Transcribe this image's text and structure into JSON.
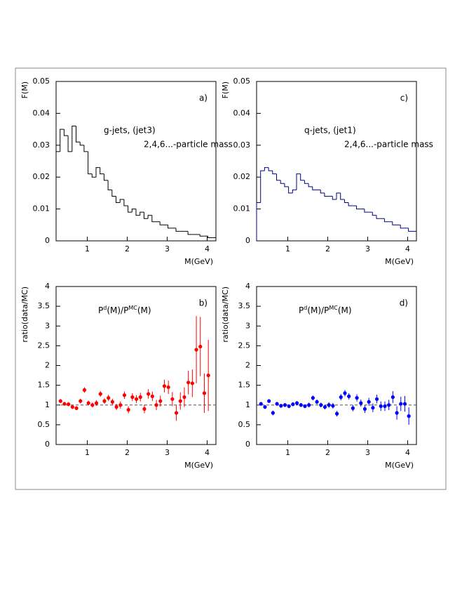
{
  "chart_data": [
    {
      "type": "histogram",
      "panel_label": "a)",
      "annotations": [
        "g-jets, (jet3)",
        "2,4,6...-particle mass"
      ],
      "xlabel": "M(GeV)",
      "ylabel": "F(M)",
      "color": "#000000",
      "xlim": [
        0.22,
        4.22
      ],
      "xticks": [
        1,
        2,
        3,
        4
      ],
      "ylim": [
        0,
        0.05
      ],
      "yticks": [
        0,
        0.01,
        0.02,
        0.03,
        0.04,
        0.05
      ],
      "bins": [
        0.22,
        0.32,
        0.42,
        0.52,
        0.62,
        0.72,
        0.82,
        0.92,
        1.02,
        1.12,
        1.22,
        1.32,
        1.42,
        1.52,
        1.62,
        1.72,
        1.82,
        1.92,
        2.02,
        2.12,
        2.22,
        2.32,
        2.42,
        2.52,
        2.62,
        2.72,
        2.82,
        2.92,
        3.02,
        3.12,
        3.22,
        3.32,
        3.42,
        3.52,
        3.62,
        3.72,
        3.82,
        3.92,
        4.02,
        4.12,
        4.22
      ],
      "values": [
        0.028,
        0.035,
        0.033,
        0.028,
        0.036,
        0.031,
        0.03,
        0.028,
        0.021,
        0.02,
        0.023,
        0.021,
        0.019,
        0.016,
        0.014,
        0.012,
        0.013,
        0.011,
        0.009,
        0.01,
        0.008,
        0.009,
        0.007,
        0.008,
        0.006,
        0.006,
        0.005,
        0.005,
        0.004,
        0.004,
        0.003,
        0.003,
        0.003,
        0.002,
        0.002,
        0.002,
        0.0015,
        0.0015,
        0.001,
        0.001
      ]
    },
    {
      "type": "errorbar",
      "panel_label": "b)",
      "formula": [
        "P",
        "d",
        "(M)/P",
        "MC",
        "(M)"
      ],
      "xlabel": "M(GeV)",
      "ylabel": "ratio(data/MC)",
      "color": "#ff0000",
      "reference_line": 1,
      "xlim": [
        0.22,
        4.22
      ],
      "xticks": [
        1,
        2,
        3,
        4
      ],
      "ylim": [
        0,
        4
      ],
      "yticks": [
        0,
        0.5,
        1,
        1.5,
        2,
        2.5,
        3,
        3.5,
        4
      ],
      "x": [
        0.33,
        0.43,
        0.53,
        0.63,
        0.73,
        0.83,
        0.93,
        1.03,
        1.13,
        1.23,
        1.33,
        1.43,
        1.53,
        1.63,
        1.73,
        1.83,
        1.93,
        2.03,
        2.13,
        2.23,
        2.33,
        2.43,
        2.53,
        2.63,
        2.73,
        2.83,
        2.93,
        3.03,
        3.13,
        3.23,
        3.33,
        3.43,
        3.53,
        3.63,
        3.73,
        3.83,
        3.93,
        4.03
      ],
      "values": [
        1.1,
        1.03,
        1.02,
        0.95,
        0.92,
        1.1,
        1.38,
        1.05,
        1.0,
        1.05,
        1.28,
        1.1,
        1.18,
        1.08,
        0.95,
        1.0,
        1.25,
        0.88,
        1.2,
        1.15,
        1.2,
        0.9,
        1.28,
        1.22,
        1.0,
        1.1,
        1.48,
        1.45,
        1.15,
        0.8,
        1.1,
        1.2,
        1.57,
        1.55,
        2.4,
        2.48,
        1.3,
        1.75
      ],
      "errors": [
        0.05,
        0.05,
        0.05,
        0.05,
        0.05,
        0.06,
        0.07,
        0.06,
        0.06,
        0.07,
        0.07,
        0.07,
        0.08,
        0.08,
        0.08,
        0.09,
        0.09,
        0.09,
        0.1,
        0.1,
        0.11,
        0.11,
        0.12,
        0.12,
        0.13,
        0.14,
        0.16,
        0.17,
        0.18,
        0.2,
        0.22,
        0.25,
        0.3,
        0.35,
        0.85,
        0.75,
        0.5,
        0.9
      ]
    },
    {
      "type": "histogram",
      "panel_label": "c)",
      "annotations": [
        "q-jets, (jet1)",
        "2,4,6...-particle mass"
      ],
      "xlabel": "M(GeV)",
      "ylabel": "F(M)",
      "color": "#000080",
      "xlim": [
        0.22,
        4.22
      ],
      "xticks": [
        1,
        2,
        3,
        4
      ],
      "ylim": [
        0,
        0.05
      ],
      "yticks": [
        0,
        0.01,
        0.02,
        0.03,
        0.04,
        0.05
      ],
      "bins": [
        0.22,
        0.32,
        0.42,
        0.52,
        0.62,
        0.72,
        0.82,
        0.92,
        1.02,
        1.12,
        1.22,
        1.32,
        1.42,
        1.52,
        1.62,
        1.72,
        1.82,
        1.92,
        2.02,
        2.12,
        2.22,
        2.32,
        2.42,
        2.52,
        2.62,
        2.72,
        2.82,
        2.92,
        3.02,
        3.12,
        3.22,
        3.32,
        3.42,
        3.52,
        3.62,
        3.72,
        3.82,
        3.92,
        4.02,
        4.12,
        4.22
      ],
      "values": [
        0.012,
        0.022,
        0.023,
        0.022,
        0.021,
        0.019,
        0.018,
        0.017,
        0.015,
        0.016,
        0.021,
        0.019,
        0.018,
        0.017,
        0.016,
        0.016,
        0.015,
        0.014,
        0.014,
        0.013,
        0.015,
        0.013,
        0.012,
        0.011,
        0.011,
        0.01,
        0.01,
        0.009,
        0.009,
        0.008,
        0.007,
        0.007,
        0.006,
        0.006,
        0.005,
        0.005,
        0.004,
        0.004,
        0.003,
        0.003
      ]
    },
    {
      "type": "errorbar",
      "panel_label": "d)",
      "formula": [
        "P",
        "d",
        "(M)/P",
        "MC",
        "(M)"
      ],
      "xlabel": "M(GeV)",
      "ylabel": "ratio(data/MC)",
      "color": "#0000ff",
      "reference_line": 1,
      "xlim": [
        0.22,
        4.22
      ],
      "xticks": [
        1,
        2,
        3,
        4
      ],
      "ylim": [
        0,
        4
      ],
      "yticks": [
        0,
        0.5,
        1,
        1.5,
        2,
        2.5,
        3,
        3.5,
        4
      ],
      "x": [
        0.33,
        0.43,
        0.53,
        0.63,
        0.73,
        0.83,
        0.93,
        1.03,
        1.13,
        1.23,
        1.33,
        1.43,
        1.53,
        1.63,
        1.73,
        1.83,
        1.93,
        2.03,
        2.13,
        2.23,
        2.33,
        2.43,
        2.53,
        2.63,
        2.73,
        2.83,
        2.93,
        3.03,
        3.13,
        3.23,
        3.33,
        3.43,
        3.53,
        3.63,
        3.73,
        3.83,
        3.93,
        4.03
      ],
      "values": [
        1.03,
        0.95,
        1.1,
        0.8,
        1.03,
        0.98,
        1.0,
        0.97,
        1.02,
        1.05,
        1.0,
        0.97,
        1.0,
        1.18,
        1.08,
        1.0,
        0.95,
        1.0,
        0.98,
        0.78,
        1.2,
        1.3,
        1.22,
        0.92,
        1.18,
        1.05,
        0.9,
        1.08,
        0.93,
        1.15,
        0.97,
        0.97,
        1.0,
        1.2,
        0.8,
        1.03,
        1.03,
        0.72
      ],
      "errors": [
        0.05,
        0.05,
        0.05,
        0.06,
        0.05,
        0.05,
        0.05,
        0.05,
        0.05,
        0.05,
        0.05,
        0.05,
        0.06,
        0.06,
        0.06,
        0.06,
        0.06,
        0.07,
        0.07,
        0.07,
        0.08,
        0.08,
        0.08,
        0.08,
        0.09,
        0.09,
        0.1,
        0.1,
        0.11,
        0.11,
        0.12,
        0.12,
        0.13,
        0.15,
        0.17,
        0.18,
        0.2,
        0.22
      ]
    }
  ]
}
